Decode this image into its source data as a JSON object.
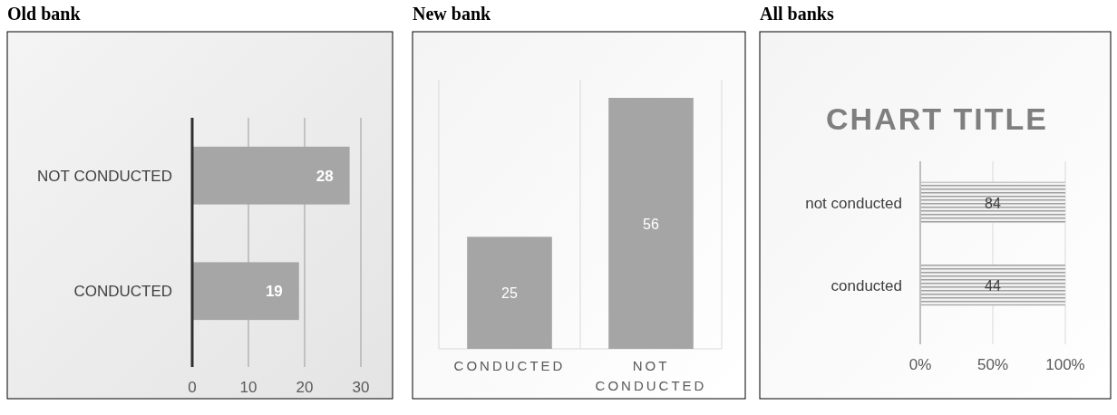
{
  "chart_data": [
    {
      "type": "bar",
      "title": "Old bank",
      "orientation": "horizontal",
      "categories": [
        "NOT CONDUCTED",
        "CONDUCTED"
      ],
      "values": [
        28,
        19
      ],
      "color": "#a6a6a6",
      "xlim": [
        0,
        30
      ],
      "xticks": [
        0,
        10,
        20,
        30
      ],
      "grid": "x",
      "data_labels": true
    },
    {
      "type": "bar",
      "title": "New bank",
      "categories": [
        "CONDUCTED",
        "NOT CONDUCTED"
      ],
      "values": [
        25,
        56
      ],
      "color": "#a5a5a5",
      "data_labels": true
    },
    {
      "type": "bar",
      "title": "All banks",
      "subtitle": "CHART TITLE",
      "orientation": "horizontal",
      "categories": [
        "not conducted",
        "conducted"
      ],
      "values": [
        100,
        100
      ],
      "annotations": [
        "84",
        "44"
      ],
      "color": "#a0a0a0",
      "xlim": [
        0,
        100
      ],
      "xticks": [
        {
          "value": 0,
          "label": "0%"
        },
        {
          "value": 50,
          "label": "50%"
        },
        {
          "value": 100,
          "label": "100%"
        }
      ],
      "grid": "x"
    }
  ]
}
